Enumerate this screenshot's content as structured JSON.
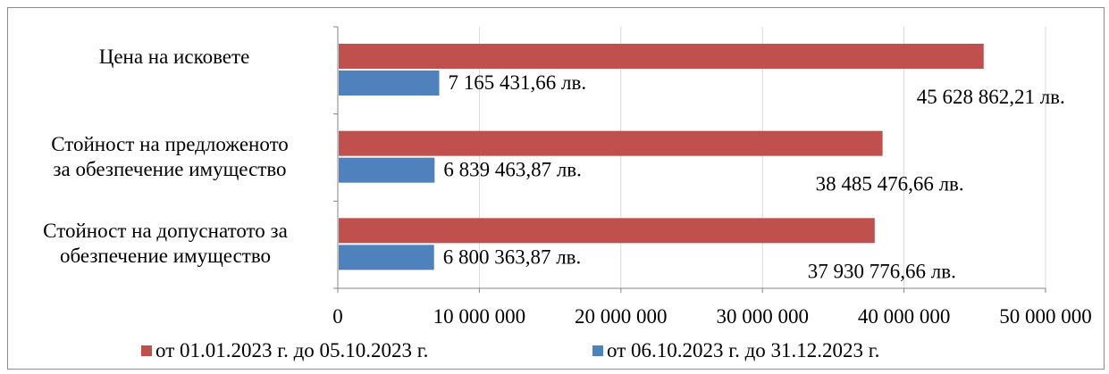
{
  "chart_data": {
    "type": "bar",
    "orientation": "horizontal",
    "categories": [
      [
        "Цена на исковете"
      ],
      [
        "Стойност на предложеното",
        "за обезпечение имущество"
      ],
      [
        "Стойност на допуснатото за",
        "обезпечение имущество"
      ]
    ],
    "series": [
      {
        "name": "от 01.01.2023 г. до 05.10.2023 г.",
        "color": "#c0504d",
        "values": [
          45628862.21,
          38485476.66,
          37930776.66
        ],
        "labels": [
          "45 628 862,21 лв.",
          "38 485 476,66 лв.",
          "37 930 776,66 лв."
        ]
      },
      {
        "name": "от 06.10.2023 г. до 31.12.2023 г.",
        "color": "#4f81bd",
        "values": [
          7165431.66,
          6839463.87,
          6800363.87
        ],
        "labels": [
          "7 165 431,66 лв.",
          "6 839 463,87 лв.",
          "6 800 363,87 лв."
        ]
      }
    ],
    "xlim": [
      0,
      50000000
    ],
    "xticks": [
      0,
      10000000,
      20000000,
      30000000,
      40000000,
      50000000
    ],
    "xtick_labels": [
      "0",
      "10 000 000",
      "20 000 000",
      "30 000 000",
      "40 000 000",
      "50 000 000"
    ],
    "gridlines": true,
    "gridline_color": "#d9d9d9",
    "legend_position": "bottom"
  }
}
